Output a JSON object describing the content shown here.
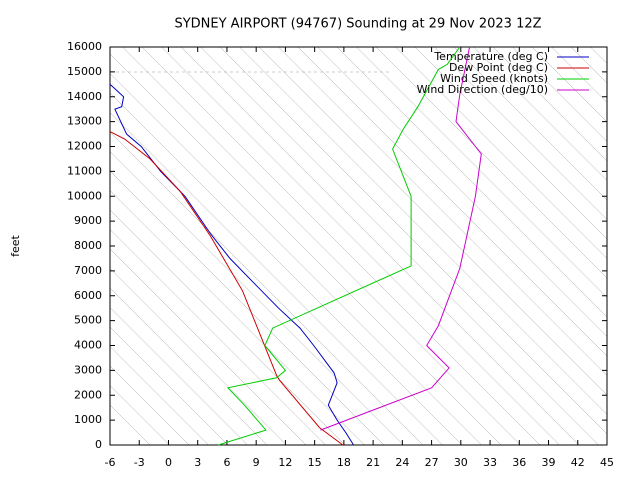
{
  "chart_data": {
    "type": "profile",
    "title": "SYDNEY AIRPORT (94767) Sounding at 29 Nov 2023 12Z",
    "y_label": "feet",
    "xlim": [
      -6,
      45
    ],
    "xticks": [
      -6,
      -3,
      0,
      3,
      6,
      9,
      12,
      15,
      18,
      21,
      24,
      27,
      30,
      33,
      36,
      39,
      42,
      45
    ],
    "ylim": [
      0,
      16000
    ],
    "yticks": [
      0,
      1000,
      2000,
      3000,
      4000,
      5000,
      6000,
      7000,
      8000,
      9000,
      10000,
      11000,
      12000,
      13000,
      14000,
      15000,
      16000
    ],
    "legend": "top-right",
    "series": [
      {
        "name": "Temperature (deg C)",
        "color": "#0000c0",
        "x": [
          19.0,
          18.2,
          17.3,
          16.4,
          16.8,
          17.3,
          17.0,
          14.9,
          13.5,
          11.3,
          8.8,
          6.3,
          4.3,
          1.7,
          -0.8,
          -2.8,
          -4.3,
          -5.5,
          -4.8,
          -4.6,
          -6.0
        ],
        "values": [
          0,
          500,
          1000,
          1600,
          2000,
          2500,
          2900,
          4000,
          4700,
          5500,
          6500,
          7500,
          8500,
          10000,
          11000,
          12000,
          12500,
          13500,
          13600,
          14000,
          14500
        ]
      },
      {
        "name": "Dew Point (deg C)",
        "color": "#cc0000",
        "x": [
          17.9,
          15.5,
          11.4,
          11.1,
          7.6,
          4.3,
          1.2,
          -1.9,
          -4.5,
          -5.5,
          -6.0
        ],
        "values": [
          0,
          700,
          2600,
          2800,
          6200,
          8400,
          10200,
          11500,
          12300,
          12500,
          12600
        ]
      },
      {
        "name": "Wind Speed (knots)",
        "color": "#00cc00",
        "x": [
          5.1,
          10.0,
          7.8,
          6.1,
          11.1,
          12.0,
          9.9,
          10.7,
          24.9,
          24.9,
          23.0,
          24.1,
          25.6,
          27.7,
          28.6,
          29.9
        ],
        "values": [
          0,
          600,
          1600,
          2300,
          2700,
          3000,
          4000,
          4700,
          7200,
          10000,
          11900,
          12700,
          13600,
          15100,
          15300,
          16000
        ]
      },
      {
        "name": "Wind Direction (deg/10)",
        "color": "#cc00cc",
        "x": [
          15.6,
          27.0,
          28.8,
          26.5,
          27.7,
          29.9,
          31.5,
          32.1,
          29.5,
          29.9,
          30.9
        ],
        "values": [
          600,
          2300,
          3100,
          4000,
          4800,
          7100,
          10000,
          11700,
          13000,
          14100,
          16000
        ]
      }
    ]
  }
}
